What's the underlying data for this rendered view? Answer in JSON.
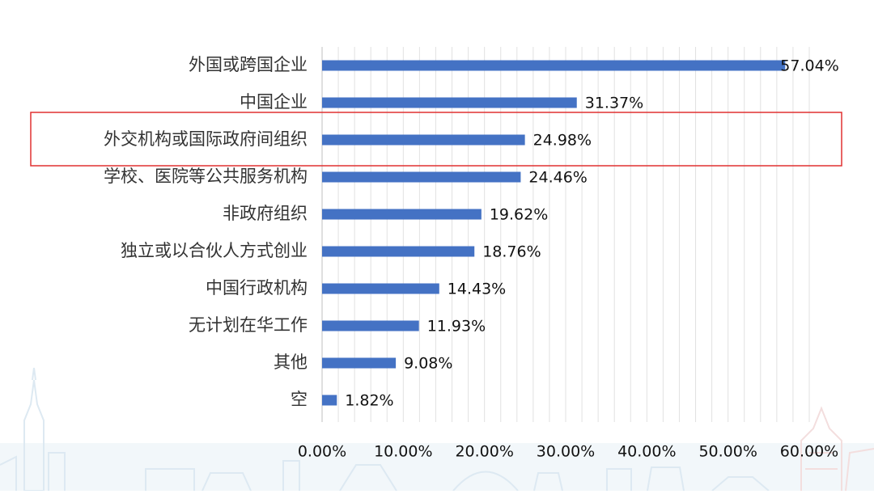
{
  "chart_data": {
    "type": "bar",
    "orientation": "horizontal",
    "categories": [
      "外国或跨国企业",
      "中国企业",
      "外交机构或国际政府间组织",
      "学校、医院等公共服务机构",
      "非政府组织",
      "独立或以合伙人方式创业",
      "中国行政机构",
      "无计划在华工作",
      "其他",
      "空"
    ],
    "values": [
      57.04,
      31.37,
      24.98,
      24.46,
      19.62,
      18.76,
      14.43,
      11.93,
      9.08,
      1.82
    ],
    "value_labels": [
      "57.04%",
      "31.37%",
      "24.98%",
      "24.46%",
      "19.62%",
      "18.76%",
      "14.43%",
      "11.93%",
      "9.08%",
      "1.82%"
    ],
    "x_ticks": [
      "0.00%",
      "10.00%",
      "20.00%",
      "30.00%",
      "40.00%",
      "50.00%",
      "60.00%"
    ],
    "xlim": [
      0,
      60
    ],
    "title": "",
    "xlabel": "",
    "ylabel": "",
    "grid": true,
    "bar_color": "#4472c4",
    "highlighted_category": "外交机构或国际政府间组织",
    "highlight_color": "#e03131"
  }
}
